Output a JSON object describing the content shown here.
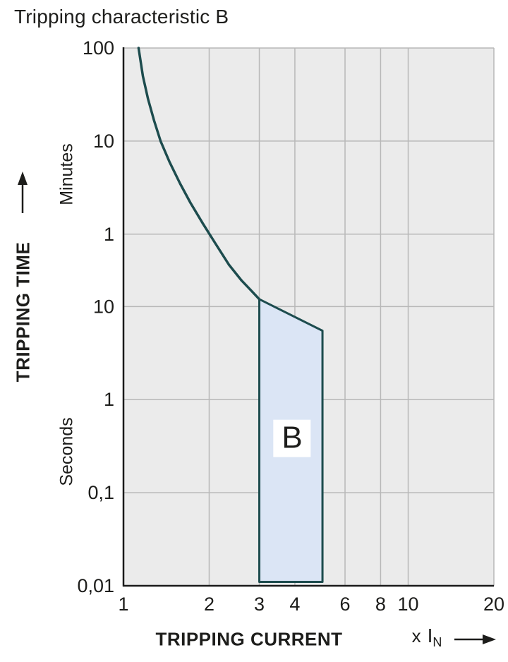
{
  "chart_data": {
    "type": "line",
    "title": "Tripping characteristic B",
    "xlabel": "TRIPPING CURRENT",
    "x_unit_prefix": "x",
    "x_unit_symbol": "I",
    "x_unit_sub": "N",
    "ylabel": "TRIPPING TIME",
    "y_unit_upper": "Minutes",
    "y_unit_lower": "Seconds",
    "x_scale": "log",
    "y_scale": "log",
    "xlim": [
      1,
      20
    ],
    "ylim_seconds": [
      0.01,
      6000
    ],
    "x_ticks": [
      1,
      2,
      3,
      4,
      6,
      8,
      10,
      20
    ],
    "x_tick_labels": [
      "1",
      "2",
      "3",
      "4",
      "6",
      "8",
      "10",
      "20"
    ],
    "y_ticks": [
      {
        "t": 6000,
        "label": "100",
        "unit": "minutes"
      },
      {
        "t": 600,
        "label": "10",
        "unit": "minutes"
      },
      {
        "t": 60,
        "label": "1",
        "unit": "minutes"
      },
      {
        "t": 10,
        "label": "10",
        "unit": "seconds"
      },
      {
        "t": 1,
        "label": "1",
        "unit": "seconds"
      },
      {
        "t": 0.1,
        "label": "0,1",
        "unit": "seconds"
      },
      {
        "t": 0.01,
        "label": "0,01",
        "unit": "seconds"
      }
    ],
    "series": [
      {
        "name": "thermal-tripping-upper-limit",
        "points": [
          [
            1.13,
            6000
          ],
          [
            1.17,
            3000
          ],
          [
            1.22,
            1700
          ],
          [
            1.28,
            1000
          ],
          [
            1.35,
            600
          ],
          [
            1.45,
            360
          ],
          [
            1.58,
            210
          ],
          [
            1.72,
            130
          ],
          [
            1.9,
            78
          ],
          [
            2.1,
            48
          ],
          [
            2.35,
            28
          ],
          [
            2.6,
            19
          ],
          [
            2.8,
            15
          ],
          [
            3.0,
            12
          ]
        ]
      }
    ],
    "band": {
      "label": "B",
      "x_range_times_In": [
        3,
        5
      ],
      "top_left_seconds": 12,
      "top_right_seconds": 5.5,
      "bottom_seconds": 0.011
    },
    "grid": true,
    "legend": false,
    "colors": {
      "curve": "#1d4c4e",
      "band_fill": "#dbe5f5",
      "plot_background": "#ebebeb",
      "grid_line": "#b8b8b8",
      "axis_line": "#1a1a1a",
      "text": "#1d1d1b",
      "band_label_background": "#ffffff"
    }
  }
}
